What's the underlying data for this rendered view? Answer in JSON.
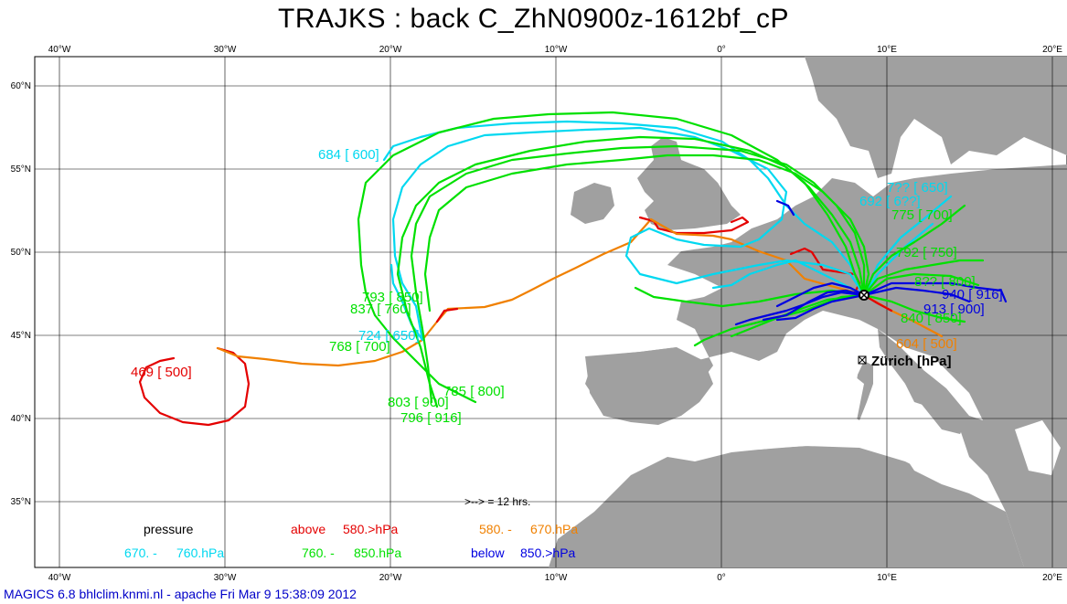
{
  "title": "TRAJKS : back C_ZhN0900z-1612bf_cP",
  "footer": "MAGICS 6.8 bhlclim.knmi.nl - apache Fri Mar  9 15:38:09 2012",
  "axes": {
    "lon_labels": [
      "40°W",
      "30°W",
      "20°W",
      "10°W",
      "0°",
      "10°E",
      "20°E"
    ],
    "lat_labels": [
      "60°N",
      "55°N",
      "50°N",
      "45°N",
      "40°N",
      "35°N"
    ]
  },
  "colors": {
    "land": "#a0a0a0",
    "sea": "#ffffff",
    "above_580": "#e40000",
    "p580_670": "#f08000",
    "p670_760": "#00d8f0",
    "p760_850": "#00e000",
    "below_850": "#0000e0"
  },
  "station": {
    "name": "Zürich [hPa]",
    "lat": 47.4,
    "lon": 8.5
  },
  "time_note": ">--> = 12 hrs.",
  "legend": {
    "pressure": "pressure",
    "above": "above",
    "above_val": "580.>hPa",
    "r580": "580. -",
    "r580_val": "670.hPa",
    "r670": "670. -",
    "r670_val": "760.hPa",
    "r760": "760. -",
    "r760_val": "850.hPa",
    "below": "below",
    "below_val": "850.>hPa"
  },
  "trajectory_labels": [
    {
      "text": "469 [ 500]",
      "color": "#e40000"
    },
    {
      "text": "684 [ 600]",
      "color": "#00d8f0"
    },
    {
      "text": "793 [ 850]",
      "color": "#00e000"
    },
    {
      "text": "837 [ 760]",
      "color": "#00e000"
    },
    {
      "text": "724 [ 650]",
      "color": "#00d8f0"
    },
    {
      "text": "768 [ 700]",
      "color": "#00e000"
    },
    {
      "text": "785 [ 800]",
      "color": "#00e000"
    },
    {
      "text": "803 [ 900]",
      "color": "#00e000"
    },
    {
      "text": "796 [ 916]",
      "color": "#00e000"
    },
    {
      "text": "7?? [ 650]",
      "color": "#00d8f0"
    },
    {
      "text": "692 [ 6??]",
      "color": "#00d8f0"
    },
    {
      "text": "775 [ 700]",
      "color": "#00e000"
    },
    {
      "text": "792 [ 750]",
      "color": "#00e000"
    },
    {
      "text": "8?? [ 800]",
      "color": "#00e000"
    },
    {
      "text": "940 [ 916]",
      "color": "#0000e0"
    },
    {
      "text": "913 [ 900]",
      "color": "#0000e0"
    },
    {
      "text": "840 [ 850]",
      "color": "#00e000"
    },
    {
      "text": "604 [ 500]",
      "color": "#f08000"
    }
  ]
}
